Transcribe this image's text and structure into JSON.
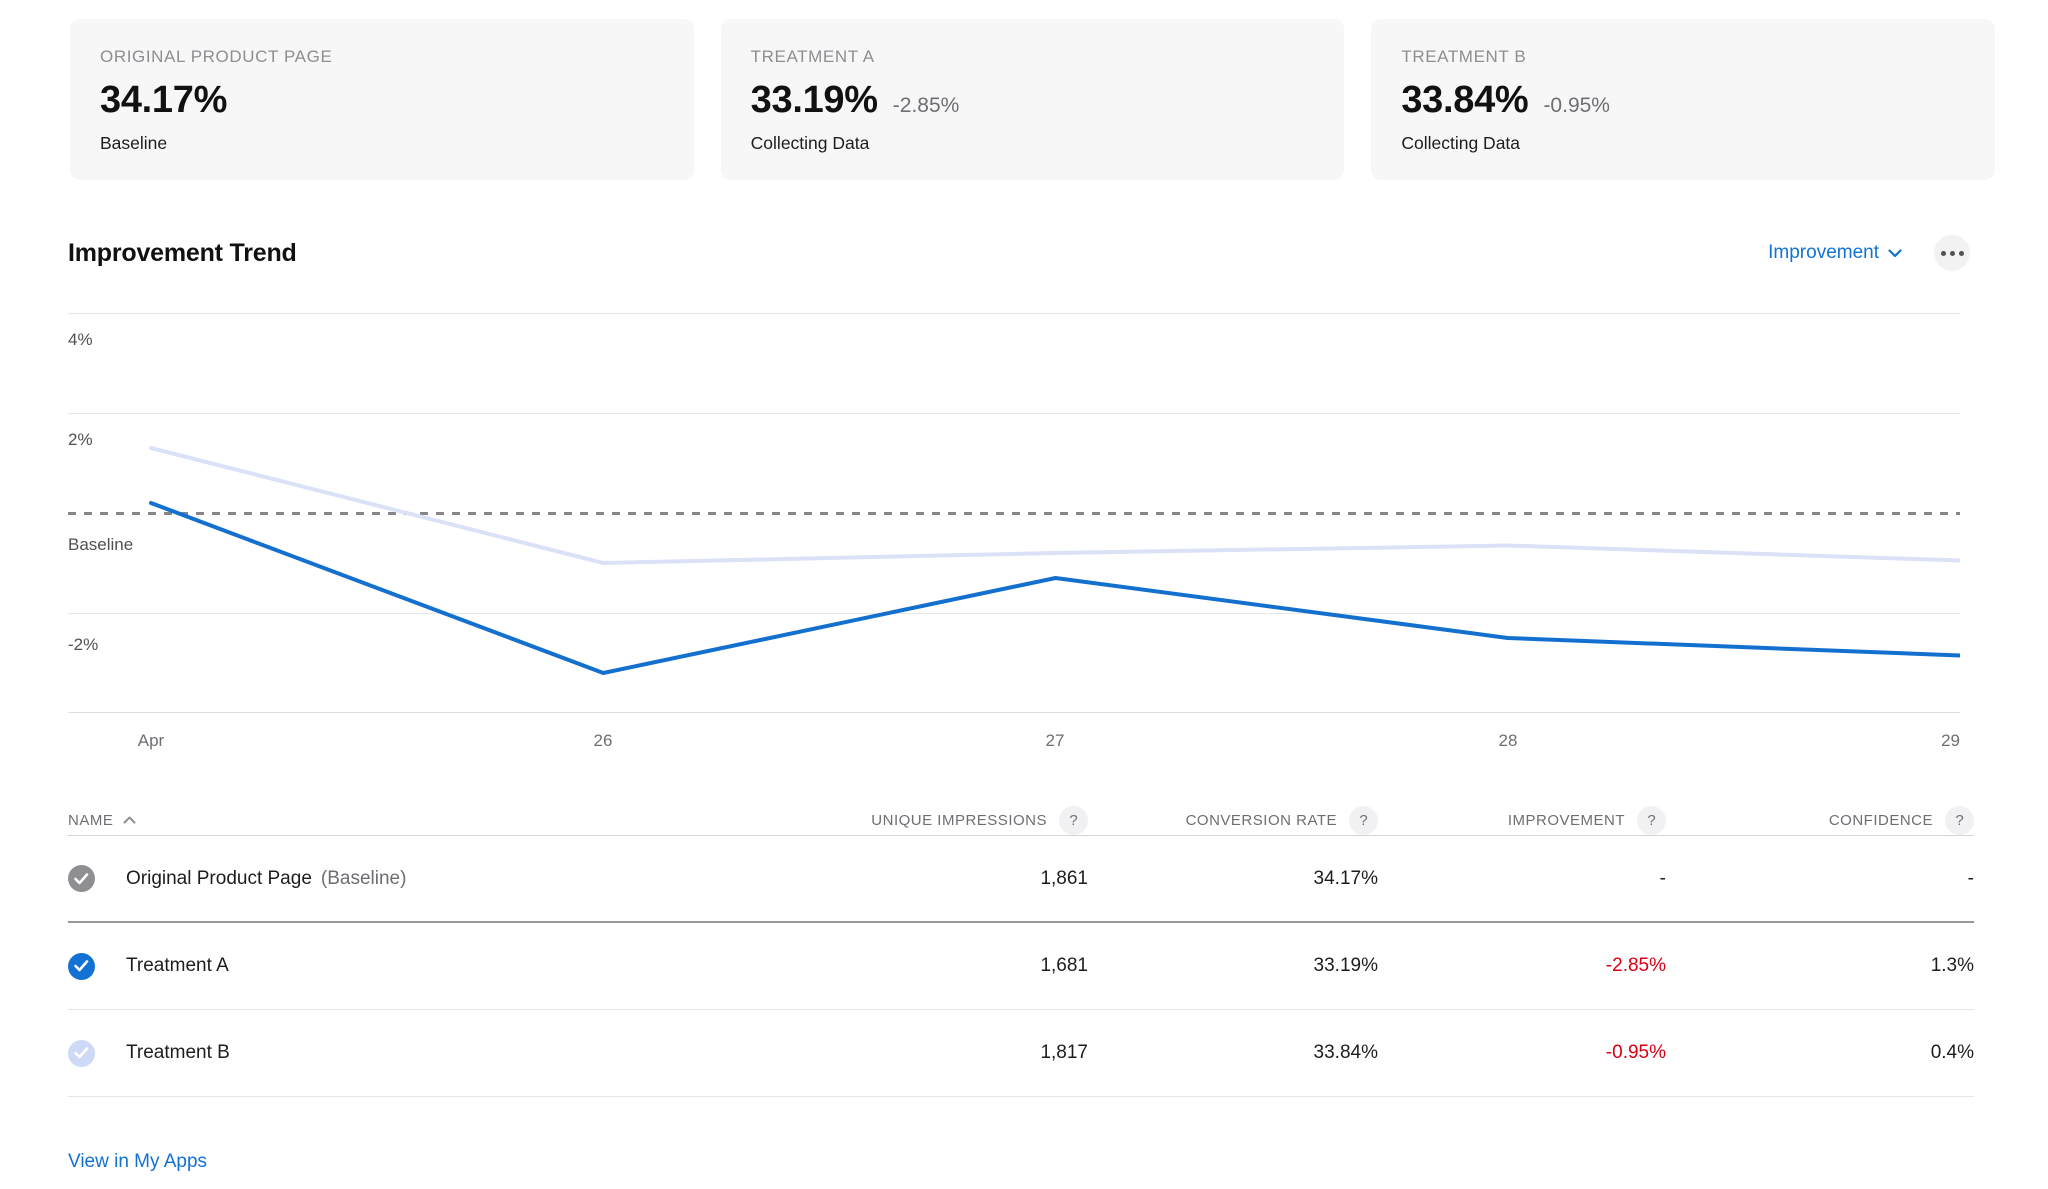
{
  "colors": {
    "accent_blue": "#1272d4",
    "treatment_a_line": "#1470ce",
    "treatment_b_line": "#dbe2f8",
    "negative_red": "#d70015",
    "card_bg": "#f7f7f8",
    "muted_gray": "#8e8e93",
    "secondary_gray": "#6e6e73"
  },
  "summary_cards": [
    {
      "label": "ORIGINAL PRODUCT PAGE",
      "value": "34.17%",
      "delta": "",
      "status": "Baseline"
    },
    {
      "label": "TREATMENT A",
      "value": "33.19%",
      "delta": "-2.85%",
      "status": "Collecting Data"
    },
    {
      "label": "TREATMENT B",
      "value": "33.84%",
      "delta": "-0.95%",
      "status": "Collecting Data"
    }
  ],
  "trend_section": {
    "title": "Improvement Trend",
    "metric_selector_label": "Improvement",
    "more_icon": "ellipsis-icon"
  },
  "chart_data": {
    "type": "line",
    "x": [
      "Apr",
      "26",
      "27",
      "28",
      "29"
    ],
    "series": [
      {
        "name": "Treatment A",
        "color": "#1470ce",
        "values": [
          0.2,
          -3.2,
          -1.3,
          -2.5,
          -2.85
        ]
      },
      {
        "name": "Treatment B",
        "color": "#dbe2f8",
        "values": [
          1.3,
          -1.0,
          -0.8,
          -0.65,
          -0.95
        ]
      }
    ],
    "title": "Improvement Trend",
    "ylabel": "Improvement",
    "ylim": [
      -4,
      4
    ],
    "yticks": [
      {
        "label": "4%",
        "value": 4
      },
      {
        "label": "2%",
        "value": 2
      },
      {
        "label": "Baseline",
        "value": 0
      },
      {
        "label": "-2%",
        "value": -2
      }
    ],
    "baseline_value": 0,
    "baseline_style": "dashed",
    "grid": true,
    "legend": "none"
  },
  "table": {
    "help_glyph": "?",
    "columns": [
      {
        "label": "NAME",
        "sorted": "asc"
      },
      {
        "label": "UNIQUE IMPRESSIONS",
        "help": true
      },
      {
        "label": "CONVERSION RATE",
        "help": true
      },
      {
        "label": "IMPROVEMENT",
        "help": true
      },
      {
        "label": "CONFIDENCE",
        "help": true
      }
    ],
    "rows": [
      {
        "name": "Original Product Page",
        "name_suffix": "(Baseline)",
        "check_style": "gray",
        "impressions": "1,861",
        "conversion": "34.17%",
        "improvement": "-",
        "confidence": "-"
      },
      {
        "name": "Treatment A",
        "name_suffix": "",
        "check_style": "blue",
        "impressions": "1,681",
        "conversion": "33.19%",
        "improvement": "-2.85%",
        "confidence": "1.3%"
      },
      {
        "name": "Treatment B",
        "name_suffix": "",
        "check_style": "light-blue",
        "impressions": "1,817",
        "conversion": "33.84%",
        "improvement": "-0.95%",
        "confidence": "0.4%"
      }
    ]
  },
  "footer": {
    "link_label": "View in My Apps"
  }
}
